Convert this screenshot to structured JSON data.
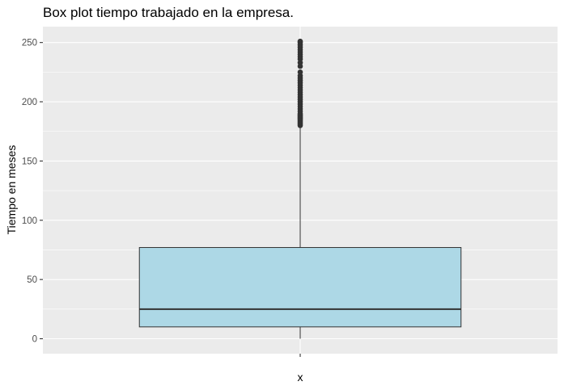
{
  "chart_data": {
    "type": "box",
    "title": "Box plot tiempo trabajado en la empresa.",
    "xlabel": "x",
    "ylabel": "Tiempo en meses",
    "categories": [
      "x"
    ],
    "y_ticks": [
      0,
      50,
      100,
      150,
      200,
      250
    ],
    "ylim": [
      -12.6,
      263.4
    ],
    "grid": true,
    "box": {
      "min": 0,
      "q1": 10,
      "median": 25,
      "q3": 77,
      "whisker_high": 179
    },
    "outliers": [
      180,
      181,
      182,
      183,
      184,
      185,
      186,
      187,
      188,
      189,
      190,
      192,
      194,
      196,
      198,
      200,
      202,
      204,
      206,
      208,
      210,
      212,
      214,
      216,
      218,
      220,
      222,
      225,
      230,
      233,
      236,
      238,
      240,
      242,
      244,
      246,
      248,
      250,
      251
    ],
    "colors": {
      "panel_background": "#ebebeb",
      "grid": "#ffffff",
      "box_fill": "#add8e6",
      "box_outline": "#333333",
      "outlier": "#333333"
    }
  }
}
